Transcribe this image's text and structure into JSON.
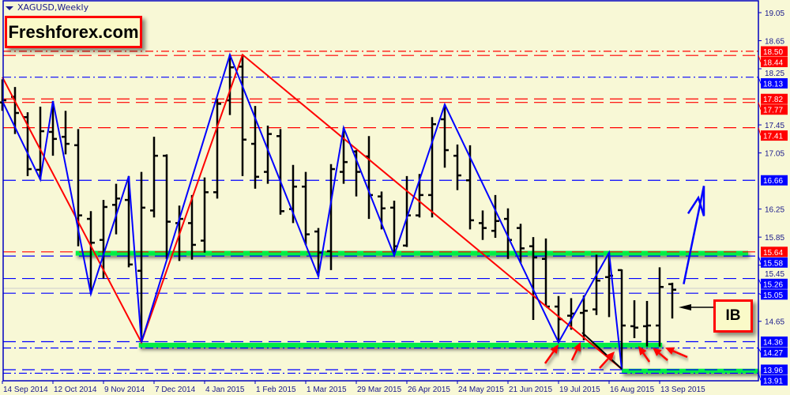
{
  "chart_title": "XAGUSD,Weekly",
  "brand": "Freshforex.com",
  "annotation_label": "IB",
  "colors": {
    "background": "#f8f8d6",
    "axis": "#0000c0",
    "bar": "#000000",
    "support_band": "#00ee44",
    "resistance": "#ff0000",
    "zigzag_blue": "#0000ff",
    "zigzag_red": "#ff0000"
  },
  "chart_data": {
    "type": "ohlc",
    "symbol": "XAGUSD",
    "timeframe": "Weekly",
    "ylim": [
      13.85,
      19.1
    ],
    "y_ticks": [
      "19.05",
      "18.65",
      "18.25",
      "17.45",
      "17.05",
      "16.25",
      "15.85",
      "15.45",
      "14.65"
    ],
    "x_ticks": [
      {
        "bar": 0,
        "label": "14 Sep 2014"
      },
      {
        "bar": 4,
        "label": "12 Oct 2014"
      },
      {
        "bar": 8,
        "label": "9 Nov 2014"
      },
      {
        "bar": 12,
        "label": "7 Dec 2014"
      },
      {
        "bar": 16,
        "label": "4 Jan 2015"
      },
      {
        "bar": 20,
        "label": "1 Feb 2015"
      },
      {
        "bar": 24,
        "label": "1 Mar 2015"
      },
      {
        "bar": 28,
        "label": "29 Mar 2015"
      },
      {
        "bar": 32,
        "label": "26 Apr 2015"
      },
      {
        "bar": 36,
        "label": "24 May 2015"
      },
      {
        "bar": 40,
        "label": "21 Jun 2015"
      },
      {
        "bar": 44,
        "label": "19 Jul 2015"
      },
      {
        "bar": 48,
        "label": "16 Aug 2015"
      },
      {
        "bar": 52,
        "label": "13 Sep 2015"
      }
    ],
    "ohlc": [
      [
        17.77,
        18.1,
        17.65,
        17.8
      ],
      [
        17.85,
        17.99,
        17.32,
        17.62
      ],
      [
        17.56,
        17.63,
        16.72,
        16.82
      ],
      [
        16.81,
        17.71,
        16.67,
        17.36
      ],
      [
        17.35,
        17.79,
        17.01,
        17.25
      ],
      [
        17.28,
        17.65,
        17.03,
        17.18
      ],
      [
        17.16,
        17.39,
        15.72,
        16.16
      ],
      [
        16.11,
        16.22,
        15.04,
        15.77
      ],
      [
        15.81,
        16.38,
        15.26,
        16.28
      ],
      [
        16.31,
        16.61,
        15.89,
        16.4
      ],
      [
        16.38,
        16.72,
        15.42,
        15.46
      ],
      [
        15.37,
        16.78,
        14.35,
        16.27
      ],
      [
        16.23,
        17.28,
        16.13,
        17.01
      ],
      [
        17.01,
        17.03,
        15.54,
        16.07
      ],
      [
        16.05,
        16.3,
        15.51,
        16.11
      ],
      [
        16.05,
        16.45,
        15.53,
        15.74
      ],
      [
        15.8,
        16.7,
        15.63,
        16.49
      ],
      [
        16.49,
        17.82,
        16.4,
        17.75
      ],
      [
        17.8,
        18.45,
        17.59,
        18.27
      ],
      [
        18.28,
        18.45,
        16.72,
        17.24
      ],
      [
        17.18,
        17.72,
        16.54,
        16.71
      ],
      [
        16.78,
        17.44,
        16.61,
        17.32
      ],
      [
        17.29,
        17.39,
        16.17,
        16.22
      ],
      [
        16.25,
        16.88,
        16.05,
        16.57
      ],
      [
        16.57,
        16.78,
        15.74,
        15.89
      ],
      [
        15.93,
        15.98,
        15.29,
        15.63
      ],
      [
        15.65,
        16.89,
        15.38,
        16.82
      ],
      [
        16.78,
        17.41,
        16.61,
        16.92
      ],
      [
        17.07,
        17.09,
        16.43,
        16.78
      ],
      [
        17.0,
        17.29,
        16.11,
        16.45
      ],
      [
        16.43,
        16.5,
        15.96,
        16.26
      ],
      [
        16.27,
        16.37,
        15.59,
        15.72
      ],
      [
        15.73,
        16.72,
        15.71,
        16.16
      ],
      [
        16.16,
        16.75,
        16.13,
        16.45
      ],
      [
        16.45,
        17.56,
        16.13,
        17.46
      ],
      [
        17.53,
        17.74,
        16.84,
        17.09
      ],
      [
        17.01,
        17.17,
        16.52,
        16.73
      ],
      [
        16.66,
        17.16,
        15.96,
        16.09
      ],
      [
        16.05,
        16.23,
        15.81,
        15.98
      ],
      [
        15.94,
        16.45,
        15.84,
        16.08
      ],
      [
        16.11,
        16.26,
        15.54,
        15.81
      ],
      [
        15.98,
        16.04,
        15.48,
        15.69
      ],
      [
        15.72,
        15.85,
        14.67,
        15.56
      ],
      [
        15.54,
        15.83,
        14.86,
        14.86
      ],
      [
        14.86,
        15.01,
        14.35,
        14.68
      ],
      [
        14.73,
        14.98,
        14.53,
        14.76
      ],
      [
        14.77,
        15.02,
        14.38,
        14.8
      ],
      [
        14.82,
        15.6,
        14.74,
        15.23
      ],
      [
        15.28,
        15.63,
        14.71,
        15.3
      ],
      [
        15.38,
        15.39,
        13.97,
        14.59
      ],
      [
        14.58,
        14.95,
        14.41,
        14.56
      ],
      [
        14.58,
        14.94,
        14.29,
        14.59
      ],
      [
        14.59,
        15.42,
        14.29,
        15.14
      ],
      [
        15.18,
        15.2,
        14.69,
        15.1
      ]
    ],
    "levels": [
      {
        "price": 18.5,
        "label": "18.50",
        "color": "#ff0000",
        "style": "dashdot",
        "tag": true
      },
      {
        "price": 18.44,
        "label": "18.44",
        "color": "#ff0000",
        "style": "dash",
        "tag": false
      },
      {
        "price": 18.13,
        "label": "18.13",
        "color": "#0000ff",
        "style": "dashdot",
        "tag": true
      },
      {
        "price": 17.82,
        "label": "17.82",
        "color": "#ff0000",
        "style": "dash",
        "tag": true
      },
      {
        "price": 17.77,
        "label": "17.77",
        "color": "#ff0000",
        "style": "dash",
        "tag": false
      },
      {
        "price": 17.41,
        "label": "17.41",
        "color": "#ff0000",
        "style": "dash",
        "tag": true
      },
      {
        "price": 16.66,
        "label": "16.66",
        "color": "#0000ff",
        "style": "dash",
        "tag": true
      },
      {
        "price": 15.64,
        "label": "15.64",
        "color": "#ff0000",
        "style": "dash",
        "tag": true
      },
      {
        "price": 15.58,
        "label": "15.58",
        "color": "#0000ff",
        "style": "dash",
        "tag": false
      },
      {
        "price": 15.26,
        "label": "15.26",
        "color": "#0000ff",
        "style": "dash",
        "tag": true
      },
      {
        "price": 15.05,
        "label": "15.05",
        "color": "#0000ff",
        "style": "dash",
        "tag": true
      },
      {
        "price": 14.36,
        "label": "14.36",
        "color": "#0000ff",
        "style": "dash",
        "tag": true
      },
      {
        "price": 14.27,
        "label": "14.27",
        "color": "#0000ff",
        "style": "dashdot",
        "tag": true
      },
      {
        "price": 13.96,
        "label": "13.96",
        "color": "#0000ff",
        "style": "dash",
        "tag": false
      },
      {
        "price": 13.91,
        "label": "13.91",
        "color": "#0000ff",
        "style": "dashdot",
        "tag": true
      }
    ],
    "support_bands": [
      {
        "price": 15.62,
        "from_bar": 5.8,
        "to_bar": 59
      },
      {
        "price": 14.31,
        "from_bar": 10.8,
        "to_bar": 52.2
      },
      {
        "price": 13.94,
        "from_bar": 49,
        "to_bar": 60
      }
    ],
    "zigzag_blue": [
      [
        0,
        17.79
      ],
      [
        3,
        16.67
      ],
      [
        4,
        17.79
      ],
      [
        7,
        15.04
      ],
      [
        10,
        16.72
      ],
      [
        11,
        14.35
      ],
      [
        18,
        18.45
      ],
      [
        25,
        15.29
      ],
      [
        27,
        17.41
      ],
      [
        31,
        15.59
      ],
      [
        35,
        17.74
      ],
      [
        44,
        14.35
      ],
      [
        48,
        15.63
      ],
      [
        49,
        13.97
      ]
    ],
    "zigzag_red": [
      [
        0,
        18.13
      ],
      [
        11,
        14.35
      ],
      [
        19,
        18.45
      ],
      [
        49,
        13.97
      ]
    ],
    "forecast_arrow": {
      "from": [
        53.9,
        15.18
      ],
      "to": [
        55.5,
        16.58
      ]
    },
    "ib_arrow_bar": 53
  }
}
